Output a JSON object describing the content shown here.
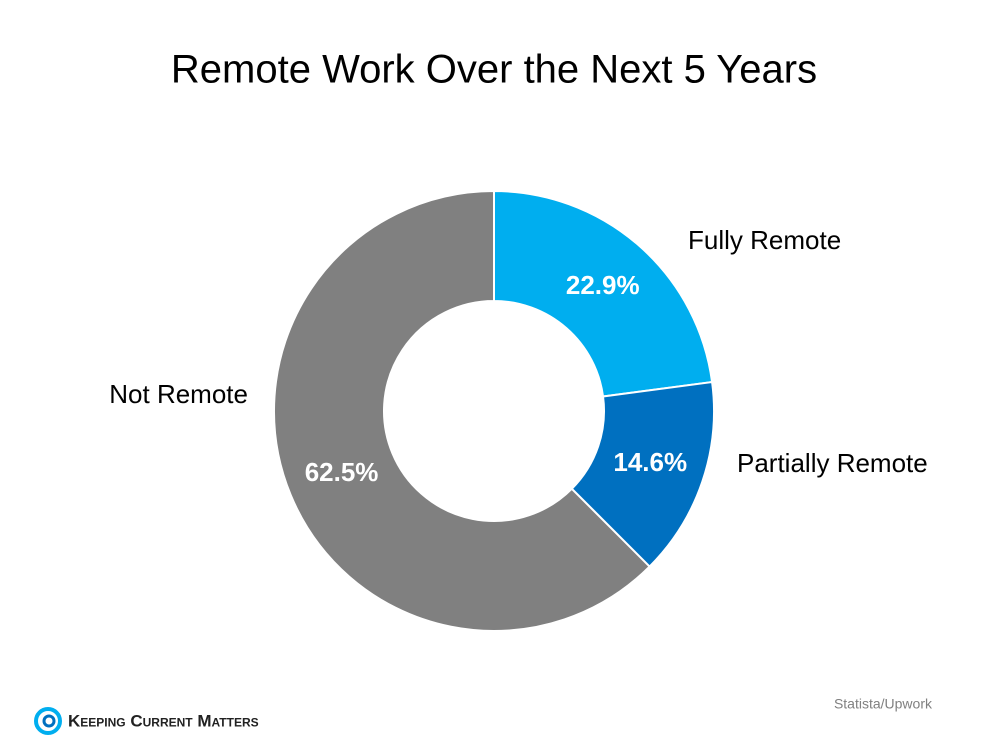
{
  "chart_data": {
    "type": "donut",
    "title": "Remote Work Over the Next 5 Years",
    "categories": [
      "Fully Remote",
      "Partially Remote",
      "Not Remote"
    ],
    "values": [
      22.9,
      14.6,
      62.5
    ],
    "value_labels": [
      "22.9%",
      "14.6%",
      "62.5%"
    ],
    "colors": [
      "#00aeef",
      "#0070c0",
      "#808080"
    ]
  },
  "footer": {
    "source": "Statista/Upwork",
    "brand": "Keeping Current Matters"
  }
}
